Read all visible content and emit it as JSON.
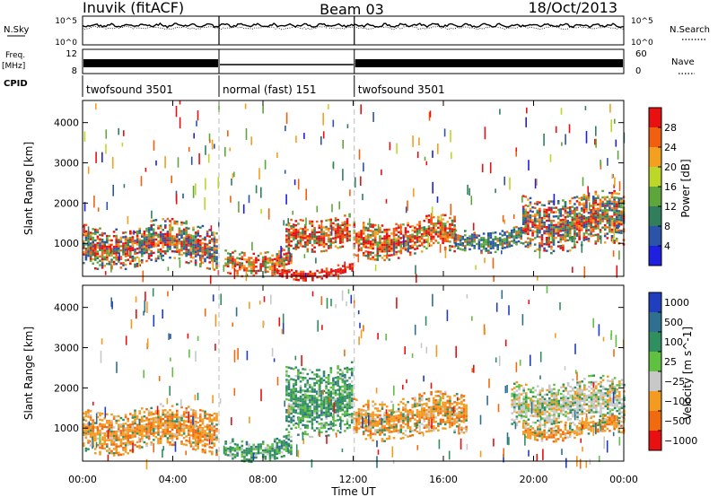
{
  "header": {
    "station": "Inuvik (fitACF)",
    "beam": "Beam 03",
    "date": "18/Oct/2013"
  },
  "summary": {
    "nsky_label": "N.Sky",
    "nsearch_label": "N.Search",
    "freq_label": "Freq.",
    "freq_unit": "[MHz]",
    "nave_label": "Nave",
    "cpid_label": "CPID",
    "left_ticks_top": [
      "10^5",
      "10^0"
    ],
    "right_ticks_top": [
      "10^5",
      "10^0"
    ],
    "left_ticks_mid": [
      "12",
      "8"
    ],
    "right_ticks_mid": [
      "60",
      "0"
    ],
    "cpid_segments": [
      {
        "start_hour": 0.0,
        "end_hour": 6.05,
        "label": "twofsound 3501"
      },
      {
        "start_hour": 6.05,
        "end_hour": 12.05,
        "label": "normal (fast) 151"
      },
      {
        "start_hour": 12.05,
        "end_hour": 24.0,
        "label": "twofsound 3501"
      }
    ]
  },
  "chart_data": [
    {
      "type": "heatmap",
      "name": "power",
      "xlabel": "",
      "ylabel": "Slant Range [km]",
      "xlim_hours": [
        0,
        24
      ],
      "ylim_km": [
        180,
        4550
      ],
      "yticks": [
        1000,
        2000,
        3000,
        4000
      ],
      "colorbar": {
        "label": "Power [dB]",
        "ticks": [
          "4",
          "8",
          "12",
          "16",
          "20",
          "24",
          "28"
        ],
        "colors": [
          "#1f1fe0",
          "#2b53a8",
          "#2f7f5c",
          "#5ea63c",
          "#bcd62a",
          "#f3a020",
          "#f06010",
          "#e81010"
        ]
      },
      "regions": [
        {
          "t0": 0.0,
          "t1": 6.0,
          "r0": 450,
          "r1": 1500,
          "level": "mixed-high"
        },
        {
          "t0": 6.3,
          "t1": 9.2,
          "r0": 300,
          "r1": 900,
          "level": "high"
        },
        {
          "t0": 8.6,
          "t1": 12.0,
          "r0": 200,
          "r1": 450,
          "level": "very-high"
        },
        {
          "t0": 9.0,
          "t1": 11.8,
          "r0": 900,
          "r1": 1700,
          "level": "high"
        },
        {
          "t0": 12.0,
          "t1": 16.5,
          "r0": 700,
          "r1": 1600,
          "level": "high"
        },
        {
          "t0": 16.5,
          "t1": 19.5,
          "r0": 900,
          "r1": 1400,
          "level": "mixed"
        },
        {
          "t0": 19.5,
          "t1": 24.0,
          "r0": 900,
          "r1": 2200,
          "level": "mixed-high"
        }
      ]
    },
    {
      "type": "heatmap",
      "name": "velocity",
      "xlabel": "Time UT",
      "ylabel": "Slant Range [km]",
      "xlim_hours": [
        0,
        24
      ],
      "ylim_km": [
        180,
        4550
      ],
      "yticks": [
        1000,
        2000,
        3000,
        4000
      ],
      "xticks": [
        "00:00",
        "04:00",
        "08:00",
        "12:00",
        "16:00",
        "20:00",
        "00:00"
      ],
      "colorbar": {
        "label": "Velocity [m s^-1]",
        "ticks": [
          "1000",
          "500",
          "100",
          "25",
          "−25",
          "−100",
          "−500",
          "−1000"
        ],
        "colors": [
          "#1f3fbf",
          "#2f6f8f",
          "#2f8f5f",
          "#5fc13f",
          "#c8c8c8",
          "#f39a20",
          "#f06a10",
          "#e81010"
        ]
      },
      "regions": [
        {
          "t0": 0.0,
          "t1": 6.0,
          "r0": 450,
          "r1": 1500,
          "level": "negative"
        },
        {
          "t0": 6.3,
          "t1": 9.2,
          "r0": 300,
          "r1": 800,
          "level": "positive"
        },
        {
          "t0": 9.0,
          "t1": 12.0,
          "r0": 900,
          "r1": 2600,
          "level": "positive"
        },
        {
          "t0": 12.0,
          "t1": 17.0,
          "r0": 800,
          "r1": 1800,
          "level": "negative"
        },
        {
          "t0": 19.0,
          "t1": 24.0,
          "r0": 1100,
          "r1": 2200,
          "level": "near-zero"
        },
        {
          "t0": 19.5,
          "t1": 24.0,
          "r0": 800,
          "r1": 1200,
          "level": "negative"
        }
      ]
    }
  ]
}
